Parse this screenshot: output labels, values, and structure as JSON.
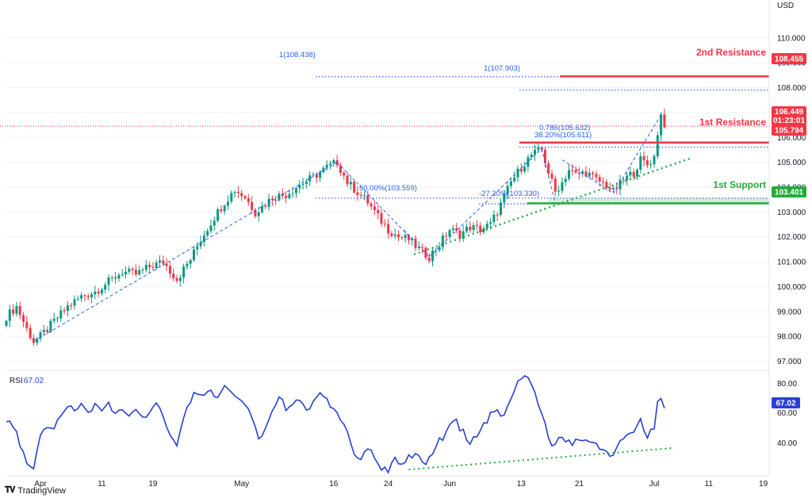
{
  "currency": "USD",
  "brand": "TradingView",
  "rsi": {
    "label": "RSI",
    "value": "67.02",
    "ticks": [
      "80.00",
      "60.00",
      "40.00"
    ]
  },
  "price_tags": {
    "current": "106.449",
    "countdown": "01:23:01",
    "resistance_1": "105.794",
    "resistance_2": "108.455",
    "support_1": "103.401"
  },
  "annotations": {
    "resistance_1": "1st Resistance",
    "resistance_2": "2nd Resistance",
    "support_1": "1st Support",
    "fib_108438": "1(108.438)",
    "fib_107903": "1(107.903)",
    "fib_0786": "0.786(105.632)",
    "fib_382": "38.20%(105.611)",
    "fib_50": "50.00%(103.559)",
    "fib_272": "-27.20%(103.330)"
  },
  "colors": {
    "up": "#089981",
    "down": "#f23645",
    "resistance": "#f23645",
    "support": "#22ab3a",
    "fib": "#2962ff",
    "rsi": "#2a3fd6",
    "support_zone": "#b7dfbd"
  },
  "chart_data": {
    "type": "candlestick",
    "ylim": [
      96.7,
      111.3
    ],
    "yticks": [
      97,
      98,
      99,
      100,
      101,
      102,
      103,
      104,
      105,
      106,
      107,
      108,
      109,
      110
    ],
    "ytick_labels": [
      "97.000",
      "98.000",
      "99.000",
      "100.000",
      "101.000",
      "102.000",
      "103.000",
      "104.000",
      "105.000",
      "106.000",
      "107.000",
      "108.000",
      "109.000",
      "110.000"
    ],
    "x_tick_labels": [
      {
        "label": "Apr",
        "bar": 10
      },
      {
        "label": "11",
        "bar": 28
      },
      {
        "label": "19",
        "bar": 43
      },
      {
        "label": "May",
        "bar": 69
      },
      {
        "label": "16",
        "bar": 96
      },
      {
        "label": "24",
        "bar": 112
      },
      {
        "label": "Jun",
        "bar": 130
      },
      {
        "label": "13",
        "bar": 151
      },
      {
        "label": "21",
        "bar": 168
      },
      {
        "label": "Jul",
        "bar": 190
      },
      {
        "label": "11",
        "bar": 206
      },
      {
        "label": "19",
        "bar": 222
      }
    ],
    "bar_count": 240,
    "price_anchors": [
      [
        0,
        98.8
      ],
      [
        3,
        99.2
      ],
      [
        6,
        98.3
      ],
      [
        8,
        97.8
      ],
      [
        10,
        98.0
      ],
      [
        14,
        98.6
      ],
      [
        18,
        99.2
      ],
      [
        22,
        99.6
      ],
      [
        26,
        99.8
      ],
      [
        30,
        100.2
      ],
      [
        34,
        100.6
      ],
      [
        38,
        100.5
      ],
      [
        42,
        100.8
      ],
      [
        46,
        101.0
      ],
      [
        50,
        100.3
      ],
      [
        54,
        101.1
      ],
      [
        57,
        101.9
      ],
      [
        61,
        102.8
      ],
      [
        64,
        103.4
      ],
      [
        67,
        103.9
      ],
      [
        70,
        103.6
      ],
      [
        73,
        103.0
      ],
      [
        75,
        103.2
      ],
      [
        78,
        103.6
      ],
      [
        82,
        103.7
      ],
      [
        86,
        104.1
      ],
      [
        90,
        104.4
      ],
      [
        94,
        104.8
      ],
      [
        97,
        105.0
      ],
      [
        100,
        104.2
      ],
      [
        103,
        103.8
      ],
      [
        106,
        103.4
      ],
      [
        109,
        102.8
      ],
      [
        112,
        102.3
      ],
      [
        115,
        102.0
      ],
      [
        118,
        101.9
      ],
      [
        121,
        101.5
      ],
      [
        124,
        101.2
      ],
      [
        127,
        101.7
      ],
      [
        130,
        102.3
      ],
      [
        133,
        102.1
      ],
      [
        136,
        102.4
      ],
      [
        139,
        102.3
      ],
      [
        142,
        102.5
      ],
      [
        145,
        103.3
      ],
      [
        148,
        104.2
      ],
      [
        151,
        104.8
      ],
      [
        154,
        105.3
      ],
      [
        157,
        105.5
      ],
      [
        159,
        104.6
      ],
      [
        161,
        103.8
      ],
      [
        163,
        104.2
      ],
      [
        165,
        104.7
      ],
      [
        167,
        104.5
      ],
      [
        170,
        104.6
      ],
      [
        173,
        104.3
      ],
      [
        176,
        104.1
      ],
      [
        178,
        103.8
      ],
      [
        181,
        104.3
      ],
      [
        184,
        104.6
      ],
      [
        186,
        105.1
      ],
      [
        188,
        104.9
      ],
      [
        190,
        105.2
      ],
      [
        191,
        106.2
      ],
      [
        192,
        106.9
      ],
      [
        193,
        106.55
      ]
    ],
    "rsi_ylim": [
      32,
      86
    ],
    "rsi_anchors": [
      [
        0,
        62
      ],
      [
        2,
        58
      ],
      [
        4,
        48
      ],
      [
        6,
        38
      ],
      [
        8,
        36
      ],
      [
        10,
        52
      ],
      [
        12,
        58
      ],
      [
        14,
        56
      ],
      [
        16,
        64
      ],
      [
        18,
        68
      ],
      [
        20,
        66
      ],
      [
        22,
        70
      ],
      [
        24,
        63
      ],
      [
        26,
        68
      ],
      [
        28,
        64
      ],
      [
        30,
        70
      ],
      [
        32,
        64
      ],
      [
        34,
        68
      ],
      [
        36,
        62
      ],
      [
        38,
        67
      ],
      [
        40,
        61
      ],
      [
        42,
        66
      ],
      [
        44,
        70
      ],
      [
        46,
        64
      ],
      [
        48,
        54
      ],
      [
        50,
        48
      ],
      [
        52,
        62
      ],
      [
        54,
        72
      ],
      [
        56,
        76
      ],
      [
        58,
        74
      ],
      [
        60,
        78
      ],
      [
        62,
        71
      ],
      [
        64,
        80
      ],
      [
        66,
        76
      ],
      [
        68,
        72
      ],
      [
        70,
        70
      ],
      [
        72,
        64
      ],
      [
        74,
        50
      ],
      [
        76,
        58
      ],
      [
        78,
        65
      ],
      [
        80,
        74
      ],
      [
        82,
        67
      ],
      [
        84,
        69
      ],
      [
        86,
        72
      ],
      [
        88,
        66
      ],
      [
        90,
        70
      ],
      [
        92,
        74
      ],
      [
        94,
        72
      ],
      [
        96,
        66
      ],
      [
        98,
        62
      ],
      [
        100,
        56
      ],
      [
        102,
        44
      ],
      [
        104,
        40
      ],
      [
        106,
        47
      ],
      [
        108,
        42
      ],
      [
        110,
        36
      ],
      [
        112,
        34
      ],
      [
        114,
        40
      ],
      [
        116,
        38
      ],
      [
        118,
        41
      ],
      [
        120,
        44
      ],
      [
        122,
        38
      ],
      [
        124,
        40
      ],
      [
        126,
        48
      ],
      [
        128,
        52
      ],
      [
        130,
        57
      ],
      [
        132,
        60
      ],
      [
        134,
        54
      ],
      [
        136,
        48
      ],
      [
        138,
        52
      ],
      [
        140,
        58
      ],
      [
        142,
        64
      ],
      [
        144,
        66
      ],
      [
        146,
        62
      ],
      [
        148,
        72
      ],
      [
        150,
        80
      ],
      [
        152,
        84
      ],
      [
        154,
        80
      ],
      [
        156,
        70
      ],
      [
        158,
        60
      ],
      [
        160,
        46
      ],
      [
        162,
        52
      ],
      [
        164,
        50
      ],
      [
        166,
        48
      ],
      [
        168,
        52
      ],
      [
        170,
        49
      ],
      [
        172,
        50
      ],
      [
        174,
        46
      ],
      [
        176,
        44
      ],
      [
        178,
        42
      ],
      [
        180,
        48
      ],
      [
        182,
        54
      ],
      [
        184,
        56
      ],
      [
        186,
        60
      ],
      [
        188,
        52
      ],
      [
        190,
        58
      ],
      [
        191,
        70
      ],
      [
        192,
        72
      ],
      [
        193,
        67
      ]
    ]
  }
}
